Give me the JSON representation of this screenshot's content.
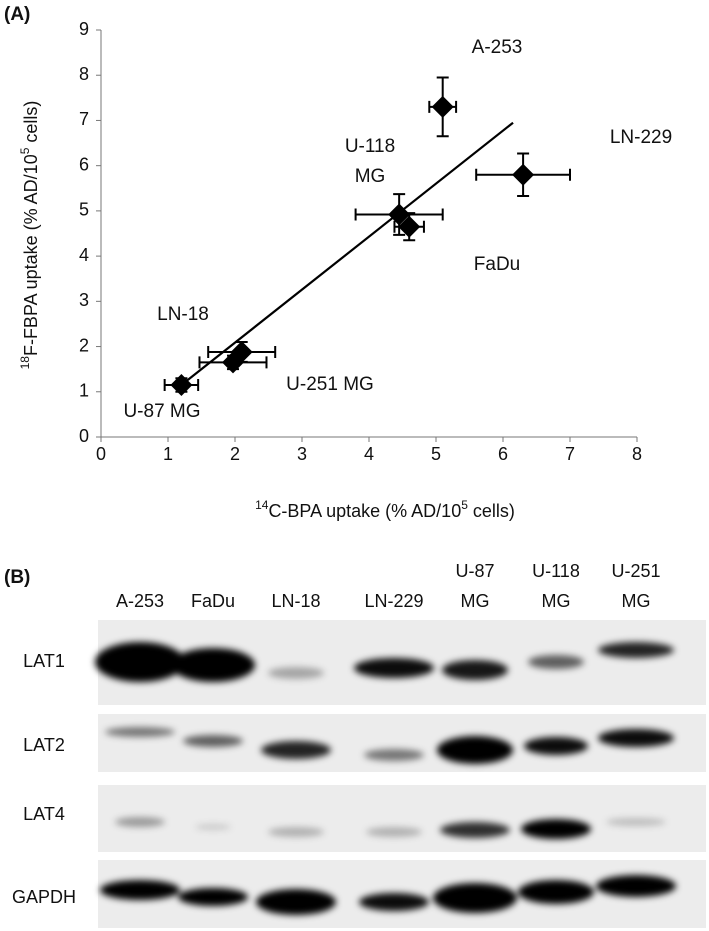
{
  "panel_a_label": "(A)",
  "chart_data": {
    "type": "scatter",
    "x": [
      5.1,
      6.3,
      4.45,
      4.6,
      2.1,
      1.97,
      1.2
    ],
    "values": [
      7.3,
      5.8,
      4.92,
      4.65,
      1.88,
      1.65,
      1.15
    ],
    "xerr": [
      0.2,
      0.7,
      0.65,
      0.22,
      0.5,
      0.5,
      0.25
    ],
    "yerr": [
      0.65,
      0.47,
      0.45,
      0.3,
      0.22,
      0.15,
      0.15
    ],
    "point_labels": [
      [
        "A-253"
      ],
      [
        "LN-229"
      ],
      [
        "U-118",
        "MG"
      ],
      [
        "FaDu"
      ],
      [
        "LN-18"
      ],
      [
        "U-251 MG"
      ],
      [
        "U-87 MG"
      ]
    ],
    "color": "#000000",
    "trendline": {
      "x": [
        1.2,
        6.15
      ],
      "y": [
        1.15,
        6.95
      ]
    },
    "xlim": [
      0,
      8
    ],
    "ylim": [
      0,
      9
    ],
    "xticks": [
      0,
      1,
      2,
      3,
      4,
      5,
      6,
      7,
      8
    ],
    "yticks": [
      0,
      1,
      2,
      3,
      4,
      5,
      6,
      7,
      8,
      9
    ],
    "x_label": {
      "iso": "14",
      "main": "C-BPA uptake (% AD/10",
      "exp": "5",
      "end": " cells)"
    },
    "y_label": {
      "iso": "18",
      "main": "F-FBPA uptake (% AD/10",
      "exp": "5",
      "end": " cells)"
    }
  },
  "panel_b_label": "(B)",
  "blot": {
    "columns": [
      [
        "A-253"
      ],
      [
        "FaDu"
      ],
      [
        "LN-18"
      ],
      [
        "LN-229"
      ],
      [
        "U-87",
        "MG"
      ],
      [
        "U-118",
        "MG"
      ],
      [
        "U-251",
        "MG"
      ]
    ],
    "rows": [
      "LAT1",
      "LAT2",
      "LAT4",
      "GAPDH"
    ]
  }
}
